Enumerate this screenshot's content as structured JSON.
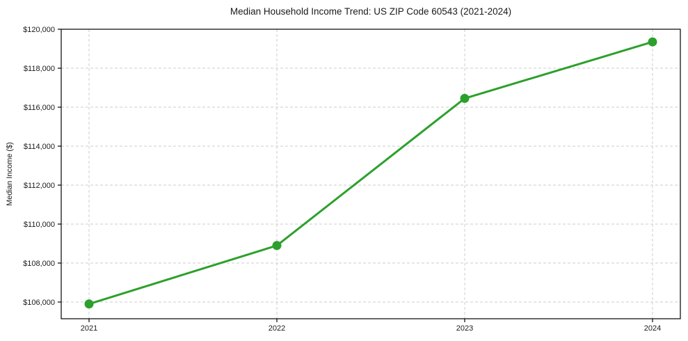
{
  "figure": {
    "background": "#ffffff"
  },
  "chart_data": {
    "type": "line",
    "title": "Median Household Income Trend: US ZIP Code 60543 (2021-2024)",
    "xlabel": "",
    "ylabel": "Median Income ($)",
    "categories": [
      "2021",
      "2022",
      "2023",
      "2024"
    ],
    "series": [
      {
        "name": "Median Household Income",
        "values": [
          105900,
          108900,
          116450,
          119350
        ],
        "color": "#2ca02c",
        "marker": "circle"
      }
    ],
    "y_ticks": [
      106000,
      108000,
      110000,
      112000,
      114000,
      116000,
      118000,
      120000
    ],
    "y_tick_labels": [
      "$106,000",
      "$108,000",
      "$110,000",
      "$112,000",
      "$114,000",
      "$116,000",
      "$118,000",
      "$120,000"
    ],
    "ylim": [
      105143,
      120000
    ],
    "grid": {
      "horizontal": true,
      "vertical": true,
      "style": "dashed",
      "color": "#cccccc"
    },
    "legend": "none",
    "axis_color": "#000000",
    "text_color": "#1a1a1a"
  }
}
